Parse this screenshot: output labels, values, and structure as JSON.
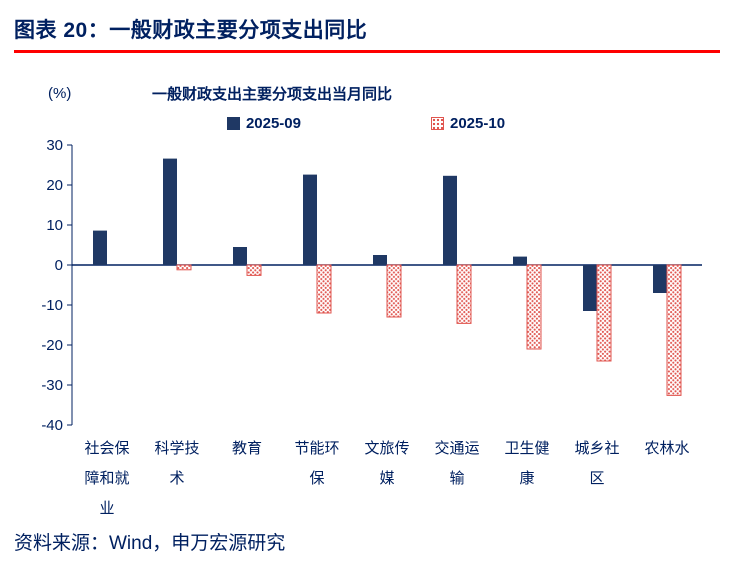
{
  "header": {
    "title": "图表 20：一般财政主要分项支出同比"
  },
  "footer": {
    "source": "资料来源：Wind，申万宏源研究"
  },
  "colors": {
    "text_navy": "#002060",
    "bar_blue": "#1f3864",
    "bar_red": "#e0554f",
    "underline_red": "#fe0000"
  },
  "chart_data": {
    "type": "bar",
    "title": "一般财政支出主要分项支出当月同比",
    "ylabel": "(%)",
    "categories": [
      "社会保障和就业",
      "科学技术",
      "教育",
      "节能环保",
      "文旅传媒",
      "交通运输",
      "卫生健康",
      "城乡社区",
      "农林水"
    ],
    "series": [
      {
        "name": "2025-09",
        "color": "#1f3864",
        "fill_style": "solid",
        "values": [
          8.6,
          26.6,
          4.5,
          22.6,
          2.5,
          22.3,
          2.1,
          -11.5,
          -7.0
        ]
      },
      {
        "name": "2025-10",
        "color": "#e0554f",
        "fill_style": "dotted",
        "values": [
          0,
          -1.2,
          -2.6,
          -12.0,
          -13.0,
          -14.6,
          -21.0,
          -24.0,
          -32.6
        ]
      }
    ],
    "ylim": [
      -40,
      30
    ],
    "yticks": [
      30,
      20,
      10,
      0,
      -10,
      -20,
      -30,
      -40
    ],
    "grid": false,
    "legend_position": "top"
  }
}
